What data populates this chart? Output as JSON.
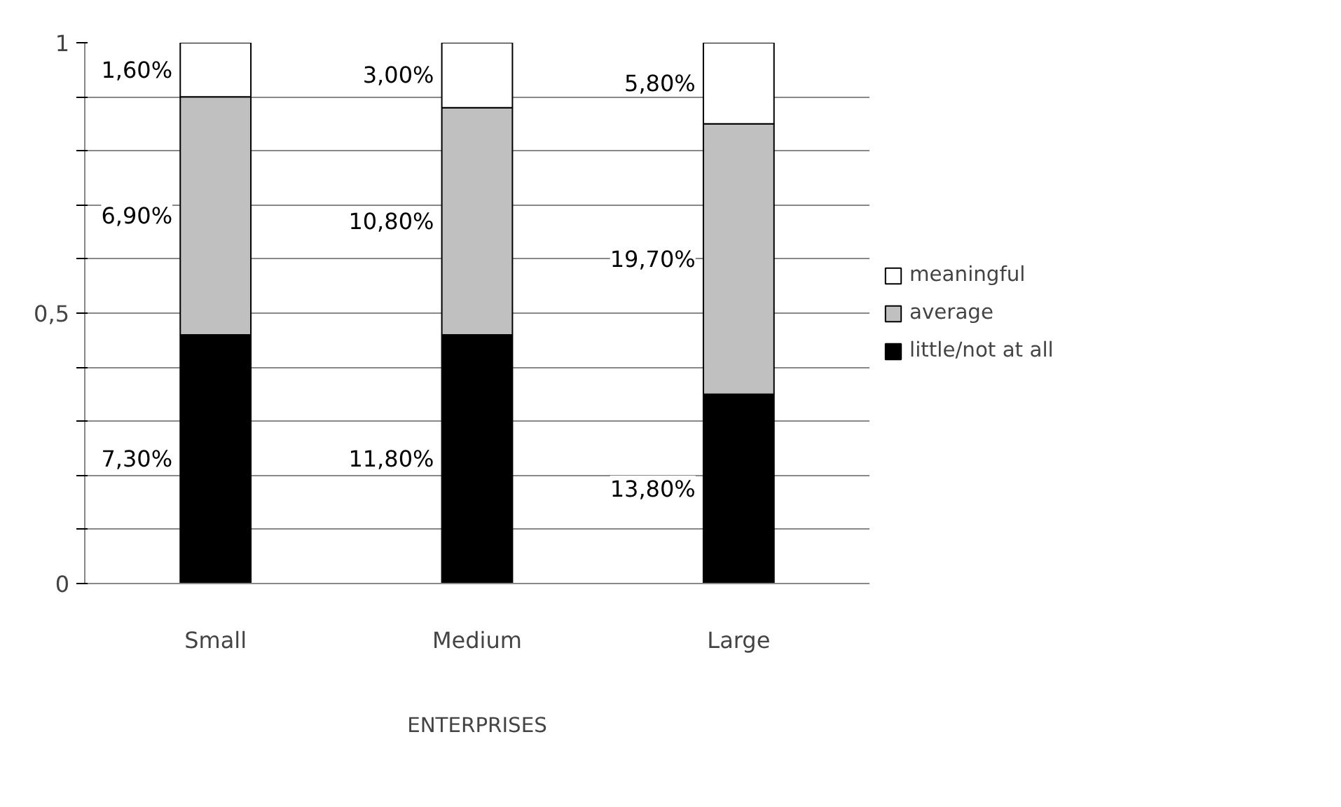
{
  "chart_data": {
    "type": "bar",
    "stacked": true,
    "xlabel": "ENTERPRISES",
    "categories": [
      "Small",
      "Medium",
      "Large"
    ],
    "series": [
      {
        "name": "little/not at all",
        "color": "#000000",
        "values": [
          0.46,
          0.46,
          0.35
        ]
      },
      {
        "name": "average",
        "color": "#c0c0c0",
        "values": [
          0.44,
          0.42,
          0.5
        ]
      },
      {
        "name": "meaningful",
        "color": "#ffffff",
        "values": [
          0.1,
          0.12,
          0.15
        ]
      }
    ],
    "annotations": [
      "7,30%",
      "11,80%",
      "13,80%",
      "6,90%",
      "10,80%",
      "19,70%",
      "1,60%",
      "3,00%",
      "5,80%"
    ],
    "ylim": [
      0,
      1
    ],
    "yticks": [
      0,
      {
        "value": 0.1,
        "label": null
      },
      {
        "value": 0.2,
        "label": null
      },
      {
        "value": 0.3,
        "label": null
      },
      {
        "value": 0.4,
        "label": null
      },
      {
        "value": 0.5,
        "label": "0,5"
      },
      {
        "value": 0.6,
        "label": null
      },
      {
        "value": 0.7,
        "label": null
      },
      {
        "value": 0.8,
        "label": null
      },
      {
        "value": 0.9,
        "label": null
      },
      1
    ],
    "grid": "y",
    "legend": "right"
  }
}
